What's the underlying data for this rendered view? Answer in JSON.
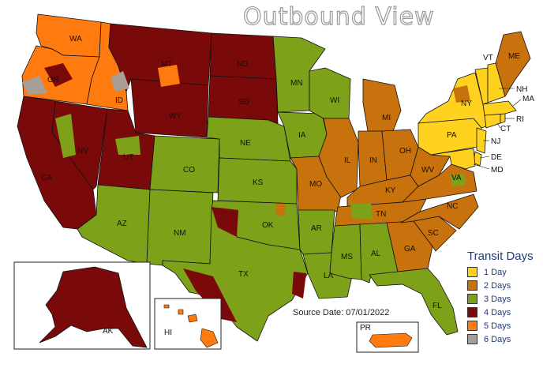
{
  "title": "Outbound View",
  "source": "Source Date: 07/01/2022",
  "colors": {
    "1": "#ffd21f",
    "2": "#c8720e",
    "3": "#7ea11a",
    "4": "#7a0a0a",
    "5": "#ff7a0f",
    "6": "#a89e96"
  },
  "legend": {
    "title": "Transit Days",
    "items": [
      {
        "label": "1 Day",
        "color": "#ffd21f"
      },
      {
        "label": "2 Days",
        "color": "#c8720e"
      },
      {
        "label": "3 Days",
        "color": "#7ea11a"
      },
      {
        "label": "4 Days",
        "color": "#7a0a0a"
      },
      {
        "label": "5 Days",
        "color": "#ff7a0f"
      },
      {
        "label": "6 Days",
        "color": "#a89e96"
      }
    ]
  },
  "states": [
    {
      "abbr": "WA",
      "days": 5
    },
    {
      "abbr": "OR",
      "days": 5
    },
    {
      "abbr": "CA",
      "days": 4
    },
    {
      "abbr": "ID",
      "days": 5
    },
    {
      "abbr": "NV",
      "days": 4
    },
    {
      "abbr": "MT",
      "days": 4
    },
    {
      "abbr": "WY",
      "days": 4
    },
    {
      "abbr": "UT",
      "days": 4
    },
    {
      "abbr": "AZ",
      "days": 3
    },
    {
      "abbr": "CO",
      "days": 3
    },
    {
      "abbr": "NM",
      "days": 3
    },
    {
      "abbr": "ND",
      "days": 4
    },
    {
      "abbr": "SD",
      "days": 4
    },
    {
      "abbr": "NE",
      "days": 3
    },
    {
      "abbr": "KS",
      "days": 3
    },
    {
      "abbr": "OK",
      "days": 3
    },
    {
      "abbr": "TX",
      "days": 3
    },
    {
      "abbr": "MN",
      "days": 3
    },
    {
      "abbr": "IA",
      "days": 3
    },
    {
      "abbr": "MO",
      "days": 2
    },
    {
      "abbr": "AR",
      "days": 3
    },
    {
      "abbr": "LA",
      "days": 3
    },
    {
      "abbr": "WI",
      "days": 3
    },
    {
      "abbr": "IL",
      "days": 2
    },
    {
      "abbr": "MI",
      "days": 2
    },
    {
      "abbr": "IN",
      "days": 2
    },
    {
      "abbr": "OH",
      "days": 2
    },
    {
      "abbr": "KY",
      "days": 2
    },
    {
      "abbr": "TN",
      "days": 2
    },
    {
      "abbr": "MS",
      "days": 3
    },
    {
      "abbr": "AL",
      "days": 3
    },
    {
      "abbr": "GA",
      "days": 2
    },
    {
      "abbr": "FL",
      "days": 3
    },
    {
      "abbr": "SC",
      "days": 2
    },
    {
      "abbr": "NC",
      "days": 2
    },
    {
      "abbr": "VA",
      "days": 2
    },
    {
      "abbr": "WV",
      "days": 2
    },
    {
      "abbr": "PA",
      "days": 1
    },
    {
      "abbr": "NY",
      "days": 1
    },
    {
      "abbr": "NJ",
      "days": 1
    },
    {
      "abbr": "DE",
      "days": 1
    },
    {
      "abbr": "MD",
      "days": 1
    },
    {
      "abbr": "CT",
      "days": 1
    },
    {
      "abbr": "RI",
      "days": 1
    },
    {
      "abbr": "MA",
      "days": 1
    },
    {
      "abbr": "VT",
      "days": 1
    },
    {
      "abbr": "NH",
      "days": 1
    },
    {
      "abbr": "ME",
      "days": 2
    },
    {
      "abbr": "AK",
      "days": 4
    },
    {
      "abbr": "HI",
      "days": 5
    },
    {
      "abbr": "PR",
      "days": 5
    }
  ]
}
